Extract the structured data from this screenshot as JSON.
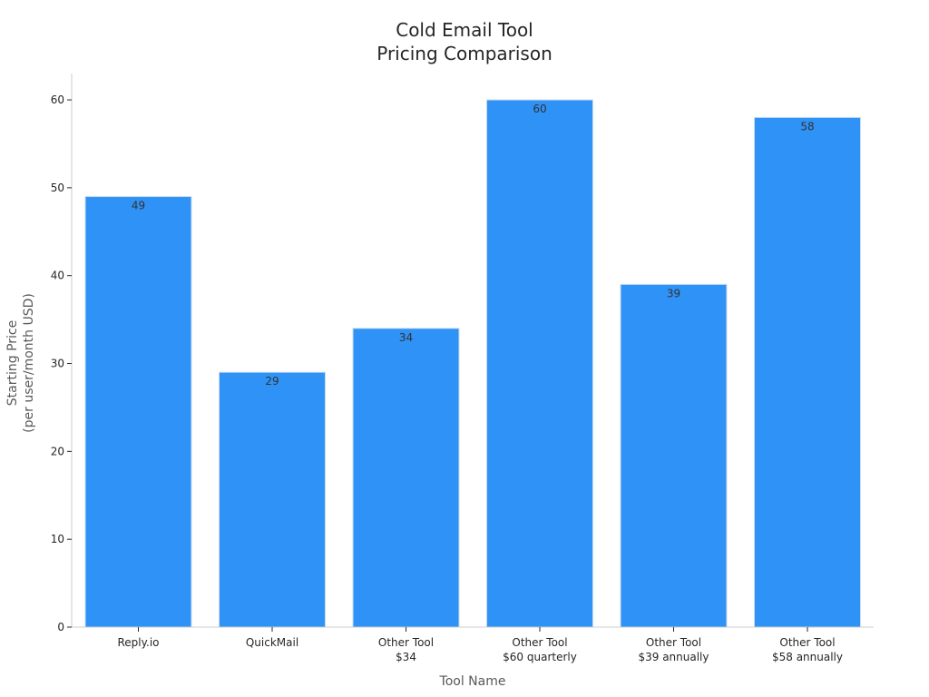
{
  "chart_data": {
    "type": "bar",
    "title": [
      "Cold Email Tool",
      "Pricing Comparison"
    ],
    "xlabel": "Tool Name",
    "ylabel": [
      "Starting Price",
      "(per user/month USD)"
    ],
    "categories": [
      [
        "Reply.io"
      ],
      [
        "QuickMail"
      ],
      [
        "Other Tool",
        "$34"
      ],
      [
        "Other Tool",
        "$60 quarterly"
      ],
      [
        "Other Tool",
        "$39 annually"
      ],
      [
        "Other Tool",
        "$58 annually"
      ]
    ],
    "values": [
      49,
      29,
      34,
      60,
      39,
      58
    ],
    "ylim": [
      0,
      63
    ],
    "yticks": [
      0,
      10,
      20,
      30,
      40,
      50,
      60
    ],
    "grid": false,
    "bar_color": "#2f92f6",
    "bar_edge_color": "#c8dcf2"
  }
}
